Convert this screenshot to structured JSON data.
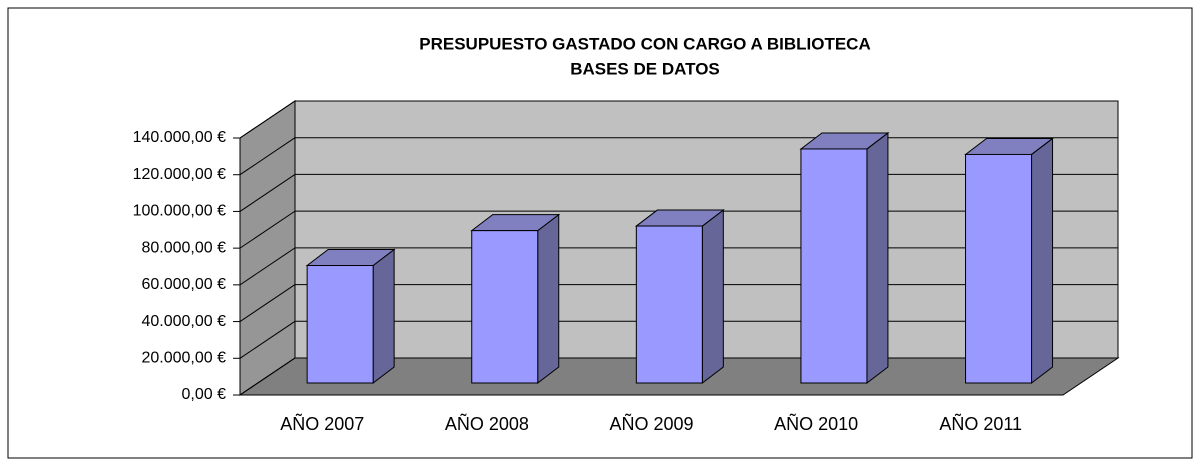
{
  "chart_data": {
    "type": "bar3d",
    "title": "PRESUPUESTO GASTADO CON CARGO A BIBLIOTECA",
    "subtitle": "BASES DE DATOS",
    "categories": [
      "AÑO 2007",
      "AÑO 2008",
      "AÑO 2009",
      "AÑO 2010",
      "AÑO 2011"
    ],
    "values": [
      64000,
      83000,
      85500,
      127500,
      124500
    ],
    "color": "#9999ff",
    "ylim": [
      0,
      140000
    ],
    "yticks": [
      {
        "value": 0,
        "label": "0,00 €"
      },
      {
        "value": 20000,
        "label": "20.000,00 €"
      },
      {
        "value": 40000,
        "label": "40.000,00 €"
      },
      {
        "value": 60000,
        "label": "60.000,00 €"
      },
      {
        "value": 80000,
        "label": "80.000,00 €"
      },
      {
        "value": 100000,
        "label": "100.000,00 €"
      },
      {
        "value": 120000,
        "label": "120.000,00 €"
      },
      {
        "value": 140000,
        "label": "140.000,00 €"
      }
    ],
    "grid": true
  }
}
